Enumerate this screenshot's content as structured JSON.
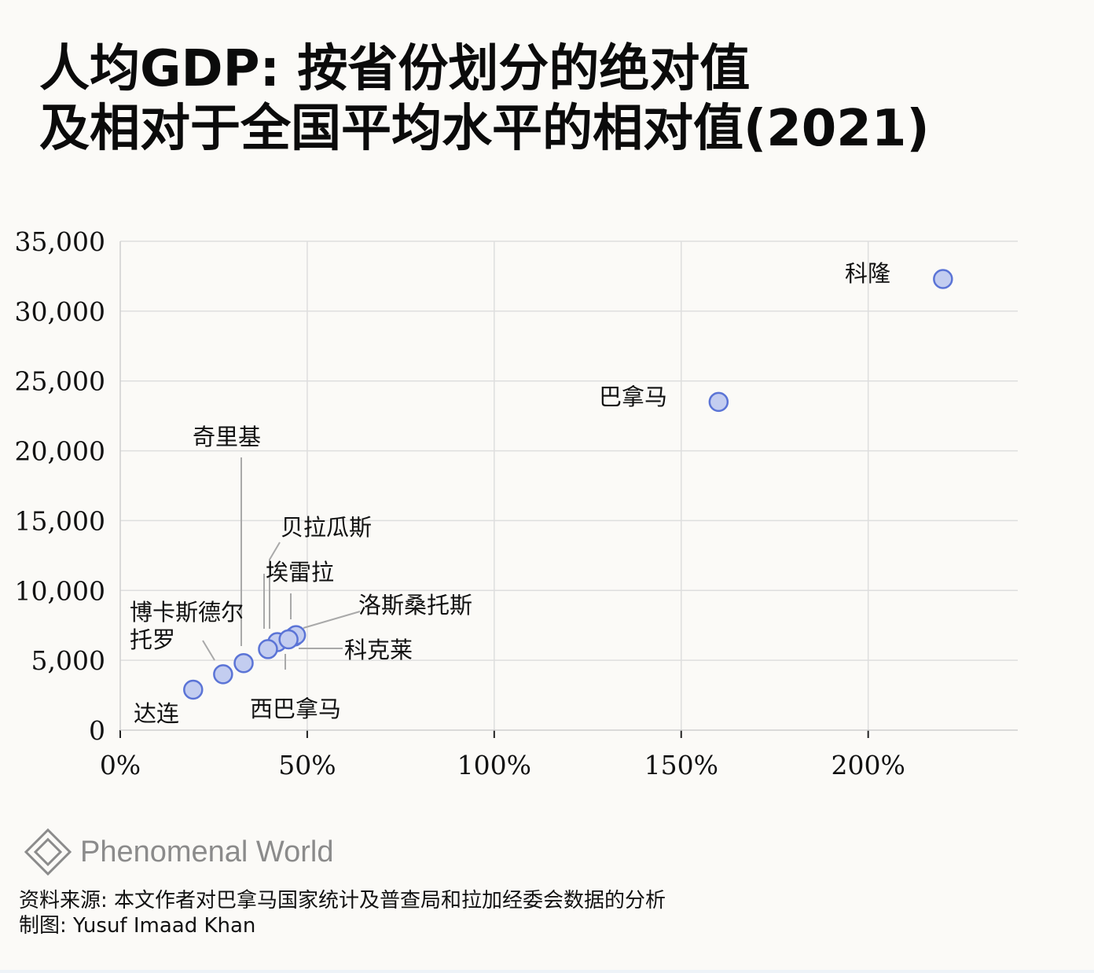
{
  "title": {
    "line1": "人均GDP: 按省份划分的绝对值",
    "line2": "及相对于全国平均水平的相对值(2021)"
  },
  "chart_data": {
    "type": "scatter",
    "title": "人均GDP: 按省份划分的绝对值 及相对于全国平均水平的相对值(2021)",
    "xlabel": "",
    "ylabel": "",
    "xlim": [
      0,
      240
    ],
    "ylim": [
      0,
      35000
    ],
    "x_ticks": [
      0,
      50,
      100,
      150,
      200
    ],
    "x_tick_labels": [
      "0%",
      "50%",
      "100%",
      "150%",
      "200%"
    ],
    "y_ticks": [
      0,
      5000,
      10000,
      15000,
      20000,
      25000,
      30000,
      35000
    ],
    "y_tick_labels": [
      "0",
      "5,000",
      "10,000",
      "15,000",
      "20,000",
      "25,000",
      "30,000",
      "35,000"
    ],
    "grid": true,
    "legend": "none",
    "marker_color": "#c3cdf0",
    "marker_edge_color": "#5b74d6",
    "points": [
      {
        "label": "科隆",
        "x": 220,
        "y": 32300
      },
      {
        "label": "巴拿马",
        "x": 160,
        "y": 23500
      },
      {
        "label": "奇里基",
        "x": 33,
        "y": 4800
      },
      {
        "label": "贝拉瓜斯",
        "x": 46.5,
        "y": 6700
      },
      {
        "label": "埃雷拉",
        "x": 42,
        "y": 6300
      },
      {
        "label": "洛斯桑托斯",
        "x": 47,
        "y": 6800
      },
      {
        "label": "科克莱",
        "x": 45,
        "y": 6500
      },
      {
        "label": "西巴拿马",
        "x": 39.5,
        "y": 5800
      },
      {
        "label": "博卡斯德尔托罗",
        "x": 27.5,
        "y": 4000
      },
      {
        "label": "达连",
        "x": 19.5,
        "y": 2900
      }
    ]
  },
  "brand": {
    "name": "Phenomenal World",
    "logo_icon": "diamond-logo-icon"
  },
  "footer": {
    "source": "资料来源: 本文作者对巴拿马国家统计及普查局和拉加经委会数据的分析",
    "credit": "制图: Yusuf Imaad Khan"
  }
}
